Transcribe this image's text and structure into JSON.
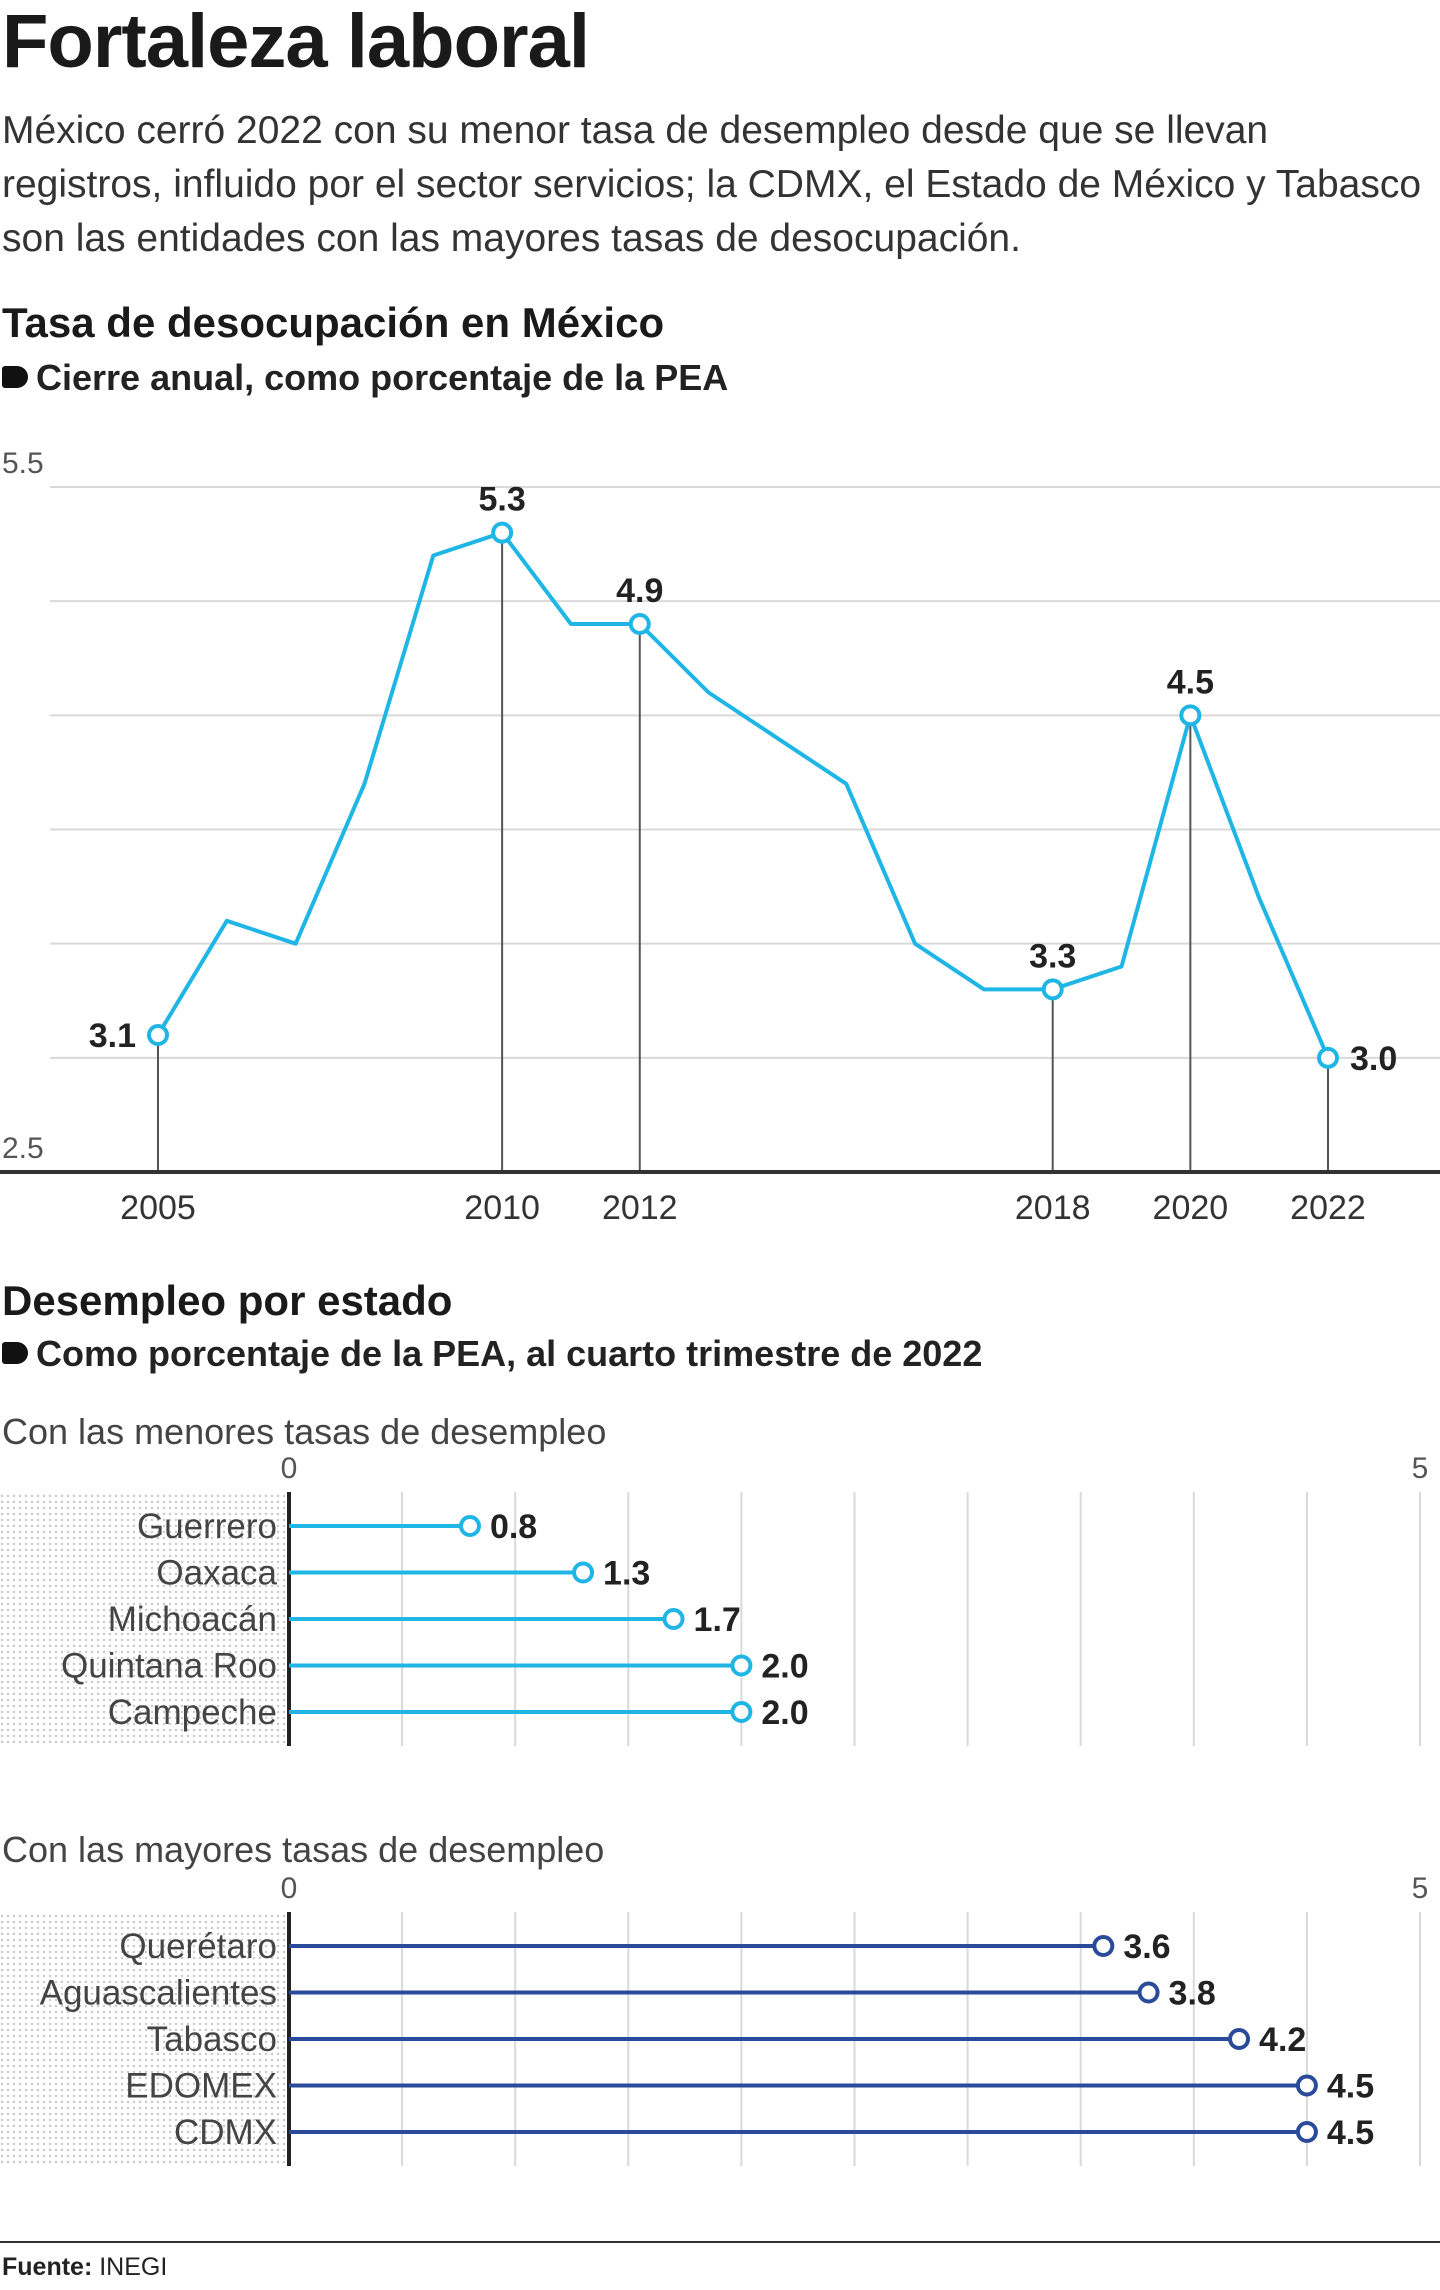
{
  "header": {
    "title": "Fortaleza laboral",
    "intro": "México cerró 2022 con su menor tasa de desempleo desde que se llevan registros, influido por el sector servicios; la CDMX, el Estado de México y Tabasco son las entidades con las mayores tasas de desocupación."
  },
  "line_section": {
    "title": "Tasa de desocupación en México",
    "subtitle": "Cierre anual, como porcentaje de la PEA"
  },
  "bar_section": {
    "title": "Desempleo por estado",
    "subtitle": "Como porcentaje de la PEA, al cuarto trimestre de 2022"
  },
  "source": {
    "label": "Fuente:",
    "value": "INEGI"
  },
  "colors": {
    "line": "#1fb6e6",
    "low_bars": "#1fb6e6",
    "high_bars": "#2a4a9a",
    "grid": "#d9d9d9",
    "axis": "#333333"
  },
  "chart_data": [
    {
      "type": "line",
      "x": [
        2005,
        2006,
        2007,
        2008,
        2009,
        2010,
        2011,
        2012,
        2013,
        2014,
        2015,
        2016,
        2017,
        2018,
        2019,
        2020,
        2021,
        2022
      ],
      "y": [
        3.1,
        3.6,
        3.5,
        4.2,
        5.2,
        5.3,
        4.9,
        4.9,
        4.6,
        4.4,
        4.2,
        3.5,
        3.3,
        3.3,
        3.4,
        4.5,
        3.7,
        3.0
      ],
      "ylim": [
        2.5,
        5.5
      ],
      "ytick_labels": [
        "5.5",
        "2.5"
      ],
      "xtick_labels": [
        "2005",
        "2010",
        "2012",
        "2018",
        "2020",
        "2022"
      ],
      "highlighted": [
        {
          "x": 2005,
          "label": "3.1"
        },
        {
          "x": 2010,
          "label": "5.3"
        },
        {
          "x": 2012,
          "label": "4.9"
        },
        {
          "x": 2018,
          "label": "3.3"
        },
        {
          "x": 2020,
          "label": "4.5"
        },
        {
          "x": 2022,
          "label": "3.0"
        }
      ],
      "grid": true
    },
    {
      "type": "bar",
      "group_label": "Con las menores tasas de desempleo",
      "categories": [
        "Guerrero",
        "Oaxaca",
        "Michoacán",
        "Quintana Roo",
        "Campeche"
      ],
      "values": [
        0.8,
        1.3,
        1.7,
        2.0,
        2.0
      ],
      "value_labels": [
        "0.8",
        "1.3",
        "1.7",
        "2.0",
        "2.0"
      ],
      "xlim": [
        0,
        5
      ],
      "tick_labels": [
        "0",
        "5"
      ]
    },
    {
      "type": "bar",
      "group_label": "Con las mayores tasas de desempleo",
      "categories": [
        "Querétaro",
        "Aguascalientes",
        "Tabasco",
        "EDOMEX",
        "CDMX"
      ],
      "values": [
        3.6,
        3.8,
        4.2,
        4.5,
        4.5
      ],
      "value_labels": [
        "3.6",
        "3.8",
        "4.2",
        "4.5",
        "4.5"
      ],
      "xlim": [
        0,
        5
      ],
      "tick_labels": [
        "0",
        "5"
      ]
    }
  ]
}
